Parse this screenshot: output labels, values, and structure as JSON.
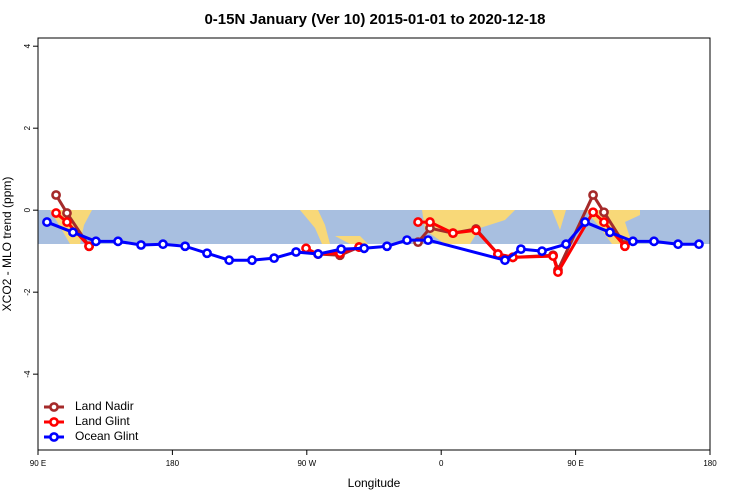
{
  "chart_data": {
    "type": "line",
    "title": "0-15N January (Ver 10)   2015-01-01 to 2020-12-18",
    "x_label": "Longitude",
    "y_label": "XCO2 - MLO trend (ppm)",
    "xlim": [
      90,
      540
    ],
    "ylim": [
      -5.85,
      4.2
    ],
    "xticks": [
      {
        "value": 90,
        "label": "90 E"
      },
      {
        "value": 180,
        "label": "180"
      },
      {
        "value": 270,
        "label": "90 W"
      },
      {
        "value": 360,
        "label": "0"
      },
      {
        "value": 450,
        "label": "90 E"
      },
      {
        "value": 540,
        "label": "180"
      }
    ],
    "yticks": [
      -4,
      -2,
      0,
      2,
      4
    ],
    "legend": "bottom-left",
    "series": [
      {
        "name": "Land Nadir",
        "color": "#a52a2a",
        "x": [
          102.1,
          109.4,
          124.2,
          null,
          277.5,
          292.2,
          305,
          null,
          344.5,
          352.5,
          367.9,
          383.3,
          398,
          408,
          434.9,
          438.2,
          461.7,
          469,
          483
        ],
        "values": [
          0.37,
          -0.07,
          -0.88,
          null,
          -1.07,
          -1.1,
          -0.9,
          null,
          -0.78,
          -0.44,
          -0.56,
          -0.46,
          -1.07,
          -1.15,
          -1.1,
          -1.46,
          0.37,
          -0.05,
          -0.85
        ]
      },
      {
        "name": "Land Glint",
        "color": "#ff0000",
        "x": [
          102.1,
          109.4,
          124.2,
          null,
          269.5,
          277.5,
          292.2,
          305,
          null,
          344.5,
          352.5,
          367.9,
          383.3,
          398,
          408,
          434.9,
          438.2,
          461.7,
          469,
          483
        ],
        "values": [
          -0.07,
          -0.29,
          -0.88,
          null,
          -0.93,
          -1.07,
          -1.05,
          -0.9,
          null,
          -0.29,
          -0.29,
          -0.56,
          -0.49,
          -1.07,
          -1.15,
          -1.12,
          -1.51,
          -0.05,
          -0.29,
          -0.88
        ]
      },
      {
        "name": "Ocean Glint",
        "color": "#0000ff",
        "x": [
          96,
          113.4,
          128.8,
          143.6,
          159,
          173.7,
          188.5,
          203.2,
          218,
          233.3,
          248.1,
          262.8,
          277.6,
          293,
          308.4,
          323.7,
          337.1,
          351.2,
          402.7,
          413.4,
          427.5,
          443.6,
          456.3,
          473,
          488.4,
          502.5,
          518.6,
          532.6
        ],
        "values": [
          -0.29,
          -0.54,
          -0.76,
          -0.76,
          -0.85,
          -0.83,
          -0.88,
          -1.05,
          -1.22,
          -1.22,
          -1.17,
          -1.02,
          -1.07,
          -0.95,
          -0.93,
          -0.88,
          -0.73,
          -0.73,
          -1.22,
          -0.95,
          -1,
          -0.83,
          -0.29,
          -0.54,
          -0.76,
          -0.76,
          -0.83,
          -0.83
        ]
      }
    ]
  }
}
